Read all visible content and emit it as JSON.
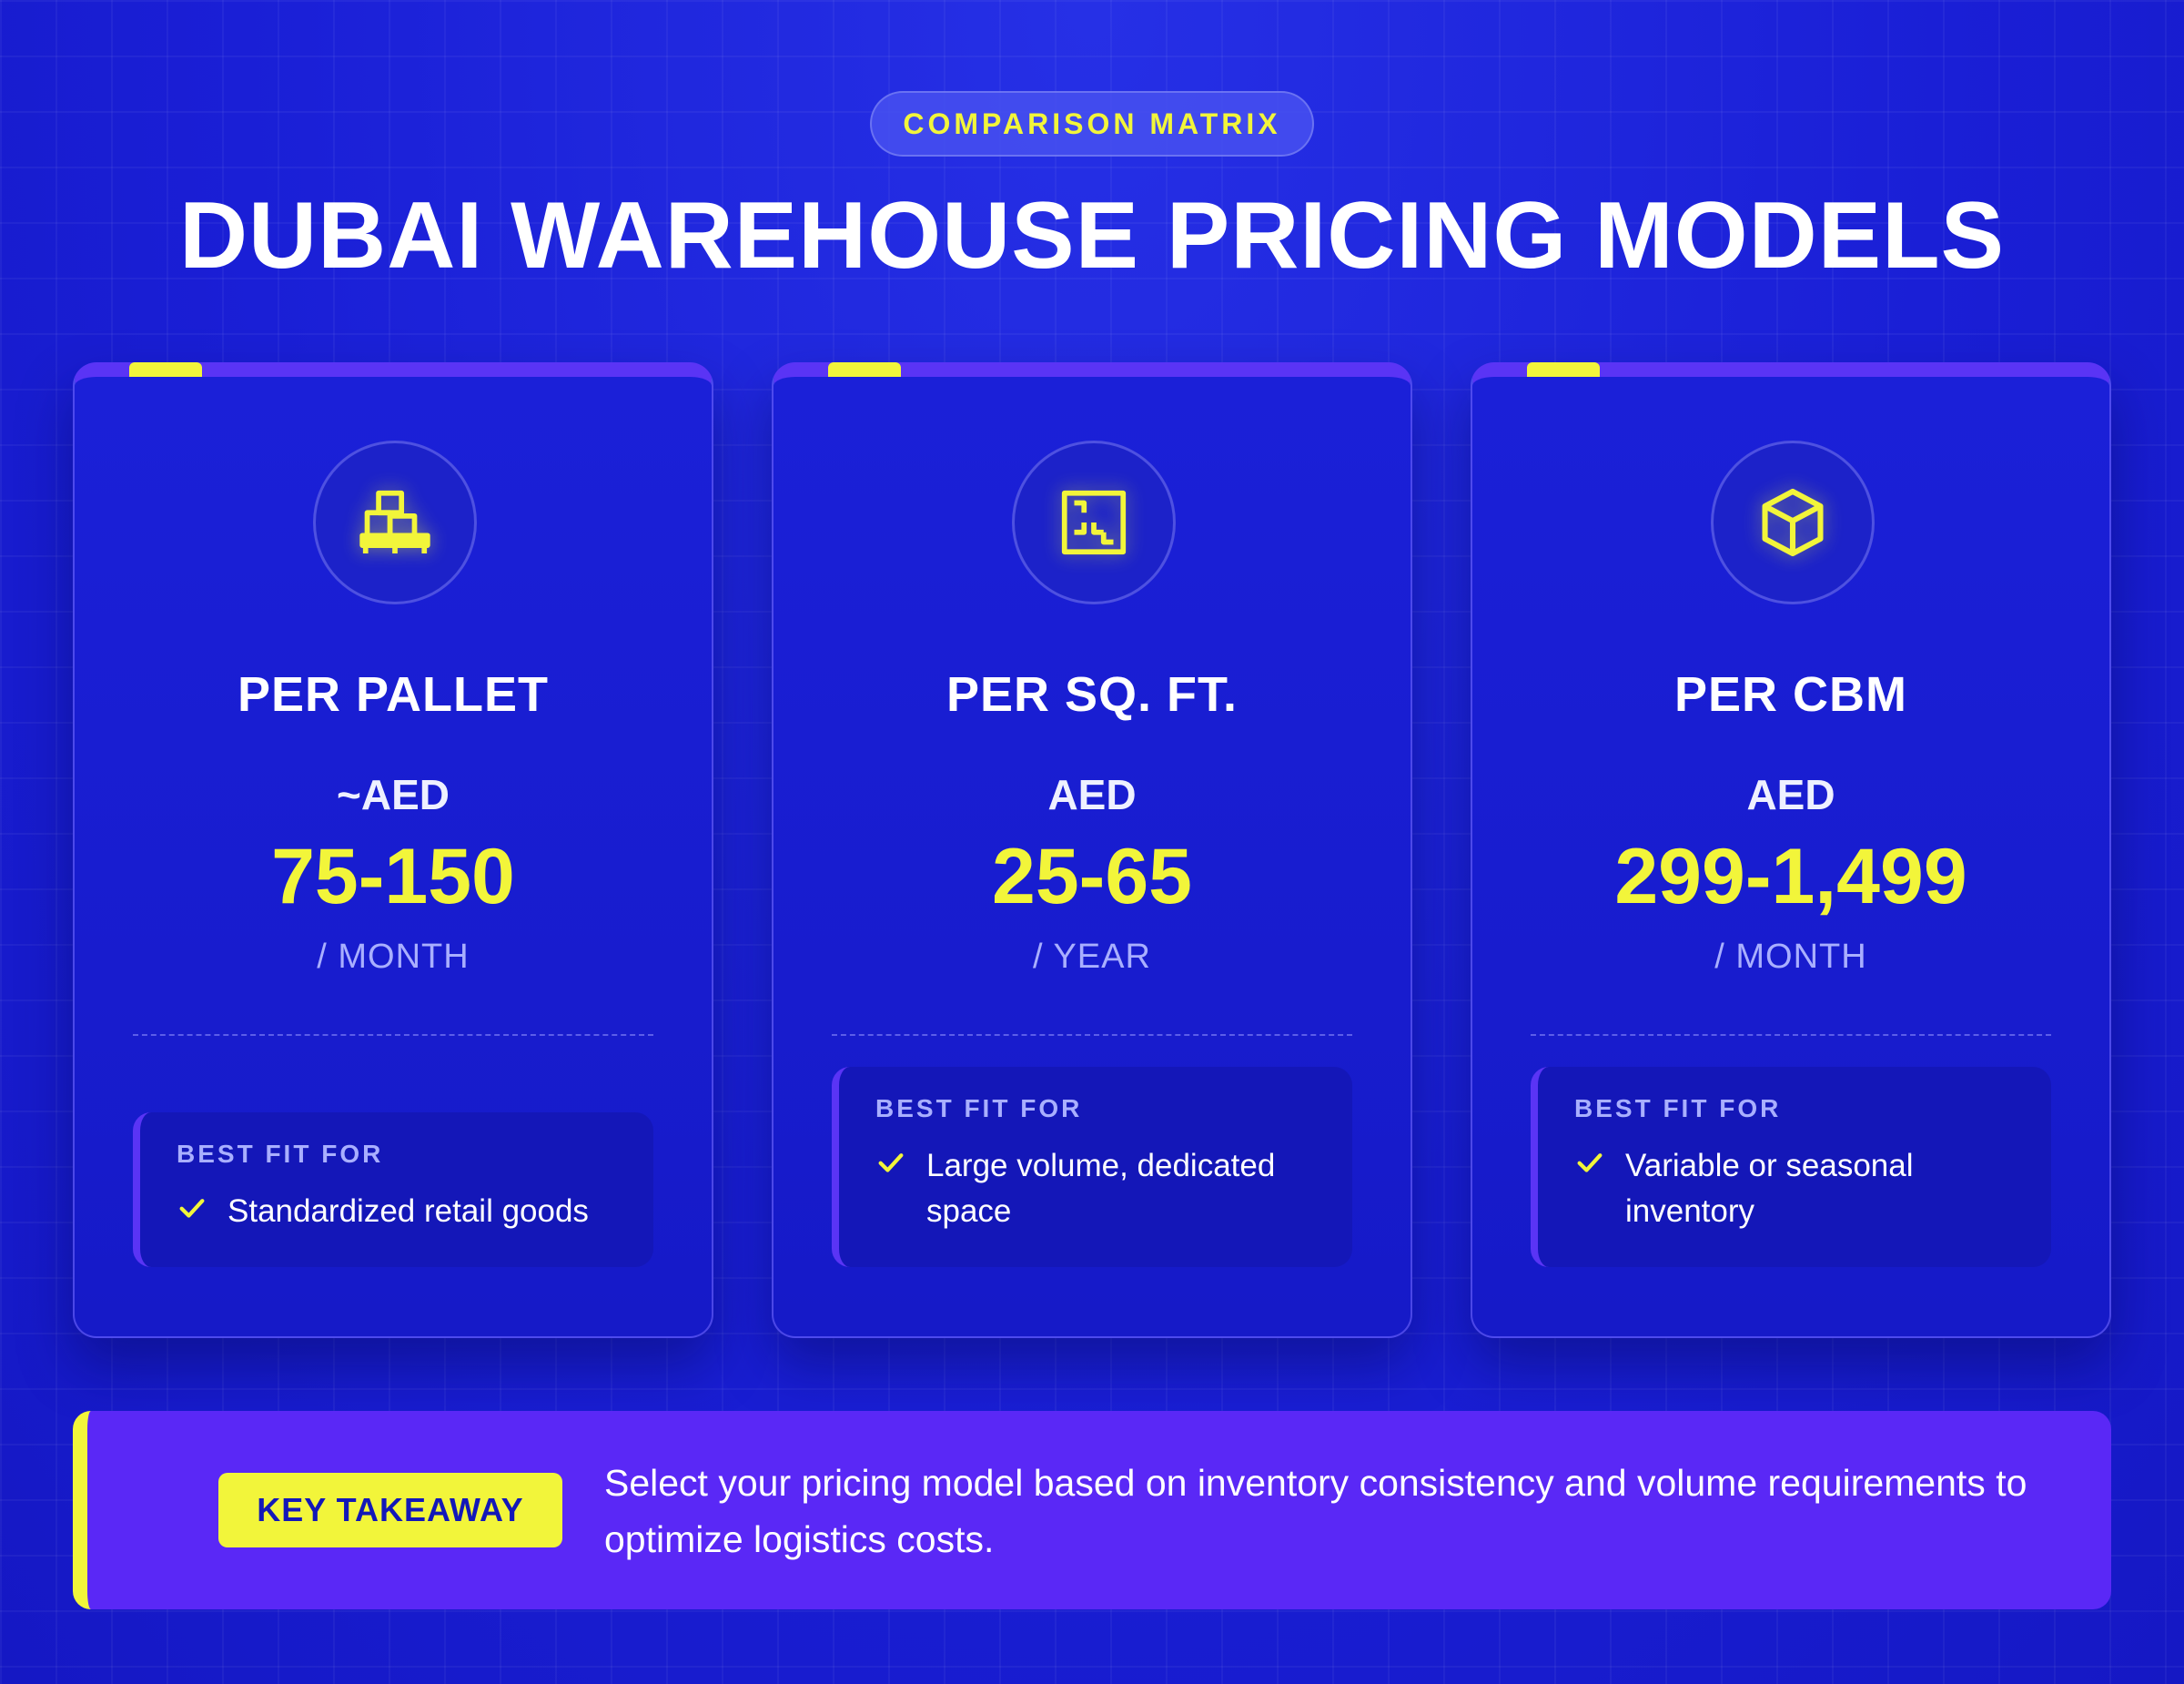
{
  "header": {
    "badge": "COMPARISON MATRIX",
    "title": "DUBAI WAREHOUSE PRICING MODELS"
  },
  "theme": {
    "background": "#1a1fd6",
    "accent_yellow": "#f2f53a",
    "accent_purple": "#5a34f5",
    "muted_text": "#a9afff"
  },
  "cards": [
    {
      "icon": "pallet-boxes-icon",
      "title": "PER PALLET",
      "price_prefix": "~AED",
      "price_value": "75-150",
      "price_unit": "/ MONTH",
      "fit_label": "BEST FIT FOR",
      "fit_text": "Standardized retail goods"
    },
    {
      "icon": "floor-plan-icon",
      "title": "PER SQ. FT.",
      "price_prefix": "AED",
      "price_value": "25-65",
      "price_unit": "/ YEAR",
      "fit_label": "BEST FIT FOR",
      "fit_text": "Large volume, dedicated space"
    },
    {
      "icon": "cube-icon",
      "title": "PER CBM",
      "price_prefix": "AED",
      "price_value": "299-1,499",
      "price_unit": "/ MONTH",
      "fit_label": "BEST FIT FOR",
      "fit_text": "Variable or seasonal inventory"
    }
  ],
  "takeaway": {
    "label": "KEY TAKEAWAY",
    "text": "Select your pricing model based on inventory consistency and volume requirements to optimize logistics costs."
  }
}
